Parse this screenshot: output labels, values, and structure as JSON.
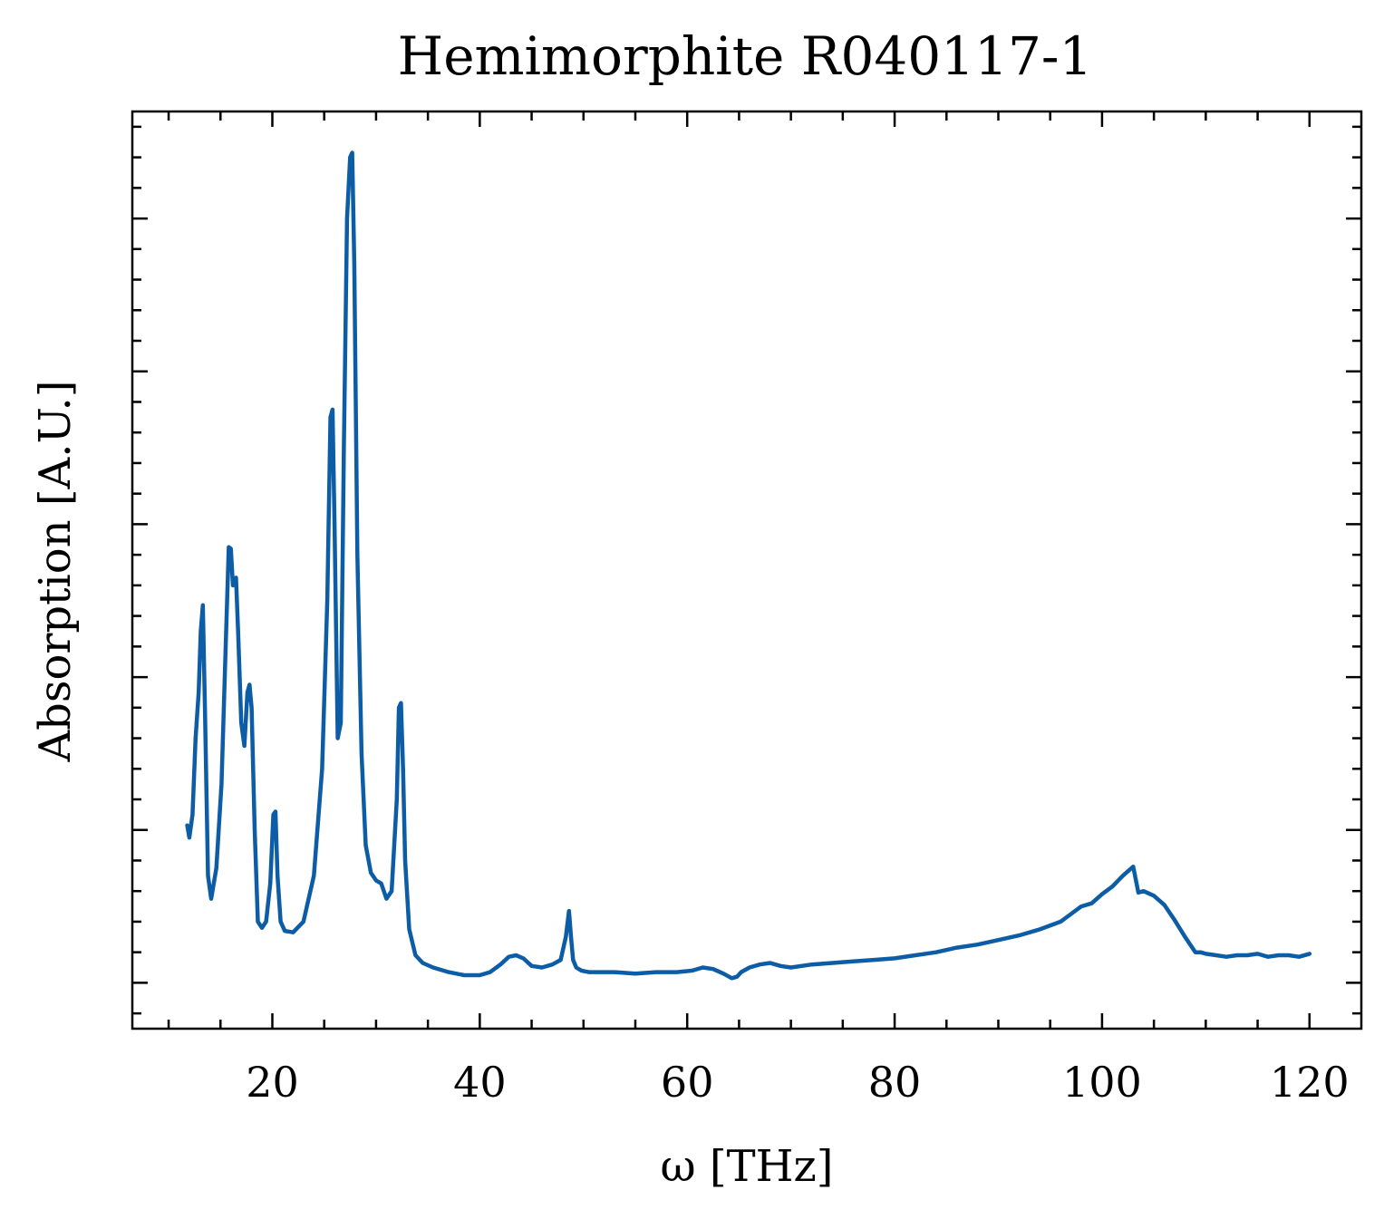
{
  "chart_data": {
    "type": "line",
    "title": "Hemimorphite R040117-1",
    "xlabel": "ω [THz]",
    "ylabel": "Absorption [A.U.]",
    "xlim": [
      6.5,
      125
    ],
    "ylim": [
      -0.03,
      0.57
    ],
    "x_ticks": [
      20,
      40,
      60,
      80,
      100,
      120
    ],
    "x_tick_labels": [
      "20",
      "40",
      "60",
      "80",
      "100",
      "120"
    ],
    "y_ticks": [
      0.0,
      0.1,
      0.2,
      0.3,
      0.4,
      0.5
    ],
    "y_tick_labels_visible": false,
    "grid": false,
    "line_color": "#0C5DA5",
    "series": [
      {
        "x": [
          11.8,
          12.0,
          12.3,
          12.6,
          12.9,
          13.1,
          13.3,
          13.5,
          13.8,
          14.1,
          14.6,
          15.1,
          15.5,
          15.8,
          16.0,
          16.2,
          16.5,
          16.7,
          17.0,
          17.3,
          17.6,
          17.8,
          18.0,
          18.3,
          18.6,
          19.0,
          19.4,
          19.8,
          20.1,
          20.3,
          20.5,
          20.8,
          21.2,
          22.0,
          23.0,
          24.0,
          24.8,
          25.3,
          25.6,
          25.8,
          26.0,
          26.3,
          26.6,
          26.9,
          27.2,
          27.5,
          27.7,
          27.9,
          28.2,
          28.6,
          29.0,
          29.5,
          30.0,
          30.5,
          31.0,
          31.5,
          32.0,
          32.2,
          32.4,
          32.6,
          32.8,
          33.2,
          33.8,
          34.5,
          35.5,
          37.0,
          38.5,
          40.0,
          41.0,
          42.0,
          42.8,
          43.5,
          44.2,
          45.0,
          46.0,
          47.0,
          47.8,
          48.3,
          48.6,
          48.8,
          49.0,
          49.3,
          49.8,
          50.5,
          51.5,
          53.0,
          55.0,
          57.0,
          59.0,
          60.5,
          61.5,
          62.5,
          63.5,
          64.3,
          64.8,
          65.2,
          66.0,
          67.0,
          68.0,
          69.0,
          70.0,
          72.0,
          74.0,
          76.0,
          78.0,
          80.0,
          82.0,
          84.0,
          86.0,
          88.0,
          90.0,
          92.0,
          94.0,
          96.0,
          97.0,
          98.0,
          99.0,
          100.0,
          101.0,
          102.0,
          103.0,
          103.5,
          104.0,
          105.0,
          106.0,
          107.0,
          108.0,
          109.0,
          109.5,
          110.0,
          111.0,
          112.0,
          113.0,
          114.0,
          115.0,
          116.0,
          117.0,
          118.0,
          119.0,
          120.0
        ],
        "y": [
          0.103,
          0.095,
          0.11,
          0.16,
          0.19,
          0.23,
          0.247,
          0.18,
          0.07,
          0.055,
          0.075,
          0.13,
          0.22,
          0.285,
          0.284,
          0.26,
          0.265,
          0.23,
          0.17,
          0.155,
          0.19,
          0.195,
          0.18,
          0.1,
          0.04,
          0.036,
          0.04,
          0.065,
          0.11,
          0.112,
          0.07,
          0.04,
          0.034,
          0.033,
          0.04,
          0.07,
          0.14,
          0.25,
          0.37,
          0.375,
          0.3,
          0.16,
          0.17,
          0.35,
          0.5,
          0.54,
          0.543,
          0.47,
          0.28,
          0.15,
          0.09,
          0.072,
          0.067,
          0.065,
          0.055,
          0.06,
          0.12,
          0.18,
          0.183,
          0.14,
          0.08,
          0.035,
          0.018,
          0.013,
          0.01,
          0.007,
          0.005,
          0.005,
          0.007,
          0.012,
          0.017,
          0.018,
          0.016,
          0.011,
          0.01,
          0.012,
          0.015,
          0.03,
          0.047,
          0.03,
          0.015,
          0.01,
          0.008,
          0.007,
          0.007,
          0.007,
          0.006,
          0.007,
          0.007,
          0.008,
          0.01,
          0.009,
          0.006,
          0.003,
          0.004,
          0.007,
          0.01,
          0.012,
          0.013,
          0.011,
          0.01,
          0.012,
          0.013,
          0.014,
          0.015,
          0.016,
          0.018,
          0.02,
          0.023,
          0.025,
          0.028,
          0.031,
          0.035,
          0.04,
          0.045,
          0.05,
          0.052,
          0.058,
          0.063,
          0.07,
          0.076,
          0.059,
          0.06,
          0.057,
          0.051,
          0.041,
          0.03,
          0.02,
          0.02,
          0.019,
          0.018,
          0.017,
          0.018,
          0.018,
          0.019,
          0.017,
          0.018,
          0.018,
          0.017,
          0.019
        ]
      }
    ]
  }
}
